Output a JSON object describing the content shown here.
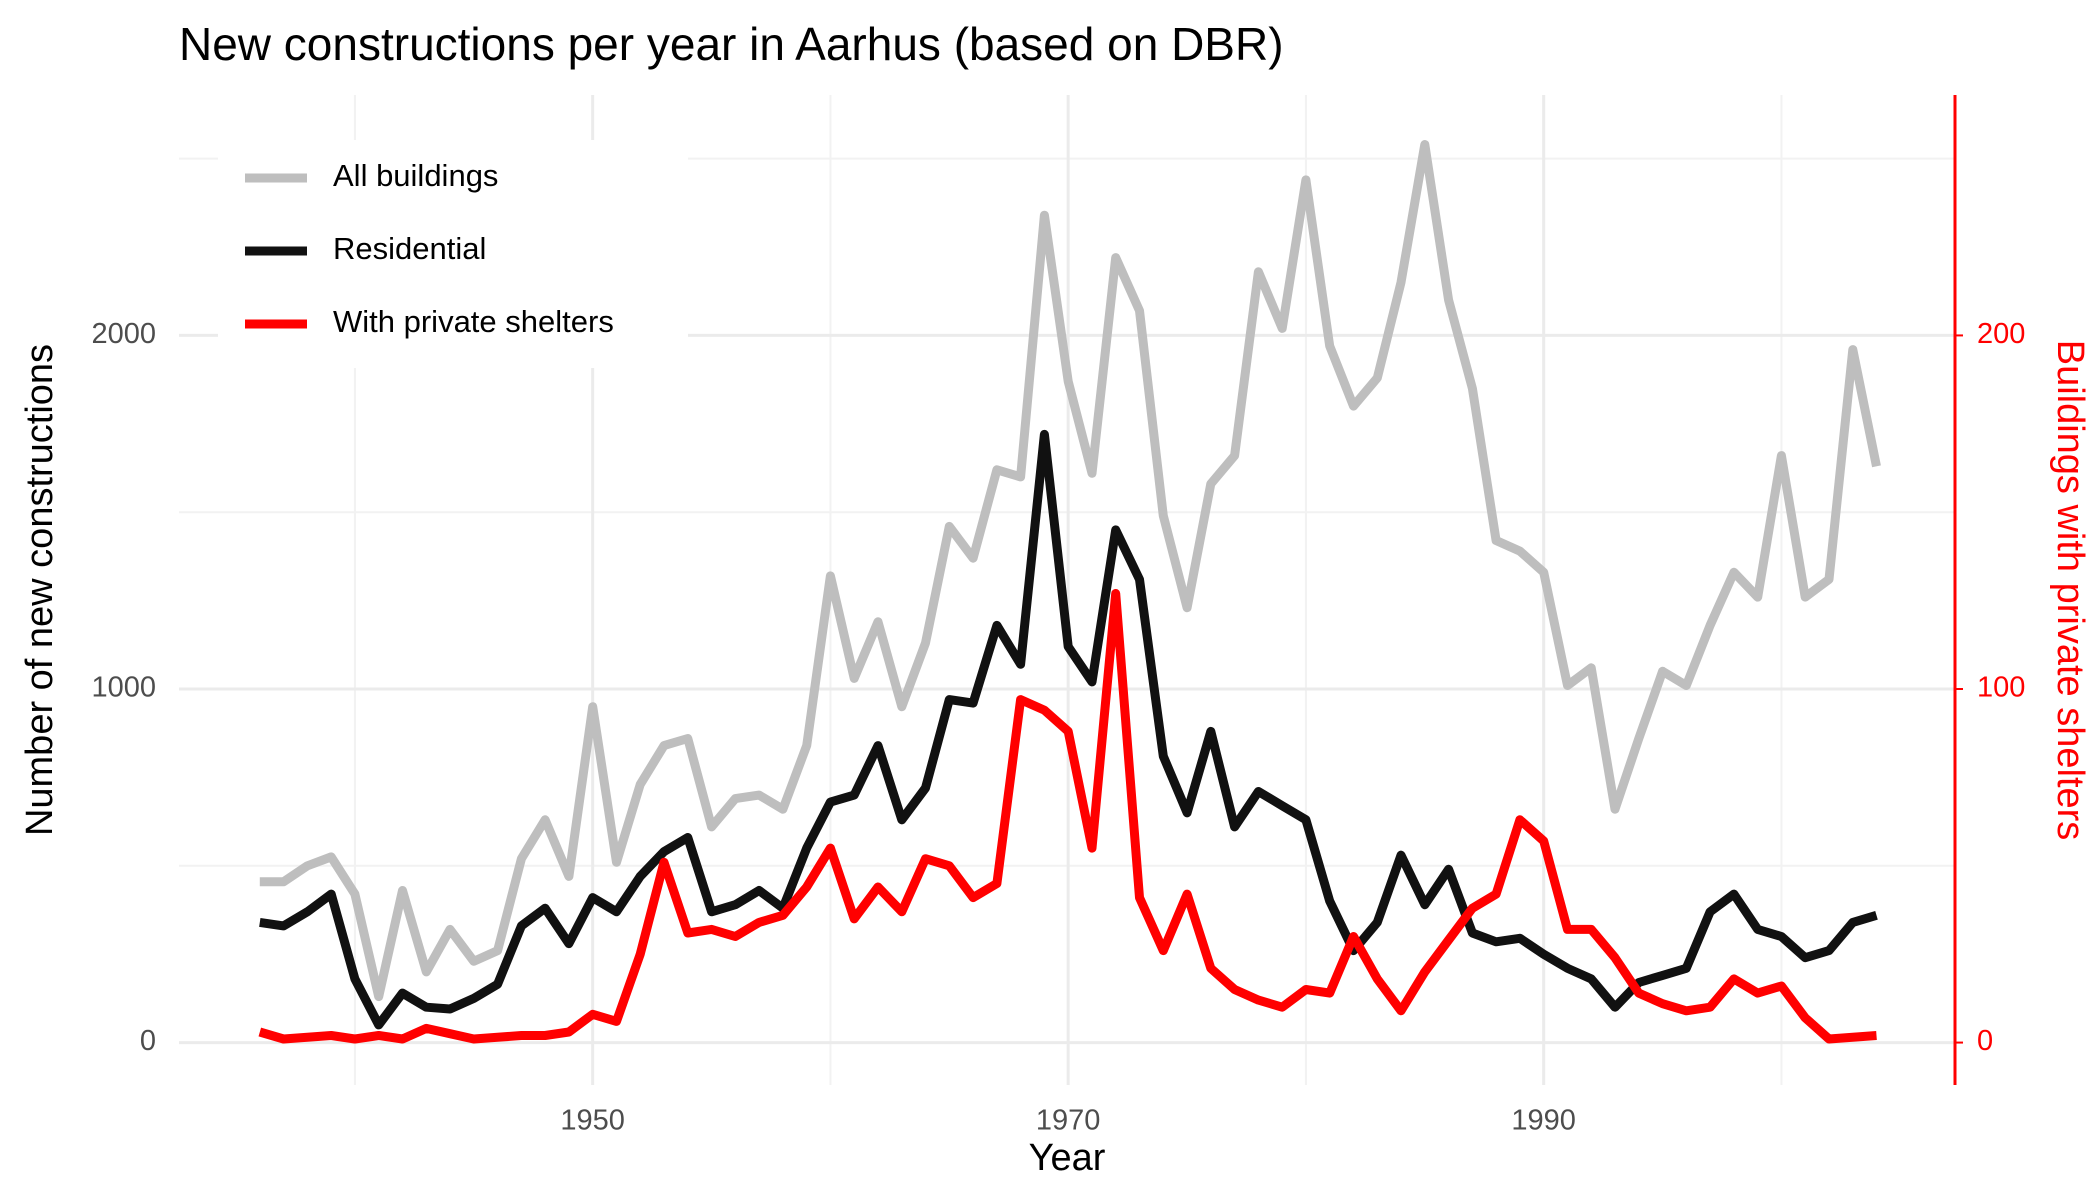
{
  "chart_data": {
    "type": "line",
    "title": "New constructions per year in Aarhus (based on DBR)",
    "xlabel": "Year",
    "ylabel": "Number of new constructions",
    "y2label": "Buildings with private shelters",
    "y2color": "#ff0000",
    "x": [
      1936,
      1937,
      1938,
      1939,
      1940,
      1941,
      1942,
      1943,
      1944,
      1945,
      1946,
      1947,
      1948,
      1949,
      1950,
      1951,
      1952,
      1953,
      1954,
      1955,
      1956,
      1957,
      1958,
      1959,
      1960,
      1961,
      1962,
      1963,
      1964,
      1965,
      1966,
      1967,
      1968,
      1969,
      1970,
      1971,
      1972,
      1973,
      1974,
      1975,
      1976,
      1977,
      1978,
      1979,
      1980,
      1981,
      1982,
      1983,
      1984,
      1985,
      1986,
      1987,
      1988,
      1989,
      1990,
      1991,
      1992,
      1993,
      1994,
      1995,
      1996,
      1997,
      1998,
      1999,
      2000,
      2001,
      2002,
      2003,
      2004
    ],
    "series": [
      {
        "name": "All buildings",
        "color": "#bebebe",
        "values": [
          455,
          455,
          500,
          525,
          420,
          130,
          430,
          200,
          320,
          230,
          260,
          520,
          630,
          470,
          950,
          510,
          730,
          840,
          860,
          610,
          690,
          700,
          660,
          840,
          1320,
          1030,
          1190,
          950,
          1130,
          1460,
          1370,
          1620,
          1600,
          2340,
          1870,
          1610,
          2220,
          2070,
          1490,
          1230,
          1580,
          1660,
          2180,
          2020,
          2440,
          1970,
          1800,
          1880,
          2150,
          2540,
          2100,
          1850,
          1420,
          1390,
          1330,
          1010,
          1060,
          660,
          860,
          1050,
          1010,
          1180,
          1330,
          1260,
          1660,
          1260,
          1310,
          1960,
          1630
        ]
      },
      {
        "name": "Residential",
        "color": "#111111",
        "values": [
          340,
          330,
          370,
          420,
          180,
          50,
          140,
          100,
          95,
          125,
          165,
          330,
          380,
          280,
          410,
          370,
          470,
          540,
          580,
          370,
          390,
          430,
          380,
          550,
          680,
          700,
          840,
          630,
          720,
          970,
          960,
          1180,
          1070,
          1720,
          1120,
          1020,
          1450,
          1310,
          810,
          650,
          880,
          610,
          710,
          670,
          630,
          400,
          260,
          340,
          530,
          390,
          490,
          310,
          285,
          295,
          250,
          210,
          180,
          100,
          170,
          190,
          210,
          370,
          420,
          320,
          300,
          240,
          260,
          340,
          360
        ]
      },
      {
        "name": "With private shelters",
        "color": "#ff0000",
        "axis": "y2",
        "values": [
          3,
          1,
          1.5,
          2,
          1,
          2,
          1,
          4,
          2.5,
          1,
          1.5,
          2,
          2,
          3,
          8,
          6,
          25,
          51,
          31,
          32,
          30,
          34,
          36,
          44,
          55,
          35,
          44,
          37,
          52,
          50,
          41,
          45,
          97,
          94,
          88,
          55,
          127,
          41,
          26,
          42,
          21,
          15,
          12,
          10,
          15,
          14,
          30,
          18,
          9,
          20,
          29,
          38,
          42,
          63,
          57,
          32,
          32,
          24,
          14,
          11,
          9,
          10,
          18,
          14,
          16,
          7,
          1,
          1.5,
          2
        ]
      }
    ],
    "xlim": [
      1932.6,
      2007.3
    ],
    "xticks": [
      1950,
      1970,
      1990
    ],
    "ylim": [
      -120,
      2680
    ],
    "yticks": [
      0,
      1000,
      2000
    ],
    "y2lim": [
      -12,
      268
    ],
    "y2ticks": [
      0,
      100,
      200
    ],
    "grid": true,
    "legend": "top-left"
  }
}
